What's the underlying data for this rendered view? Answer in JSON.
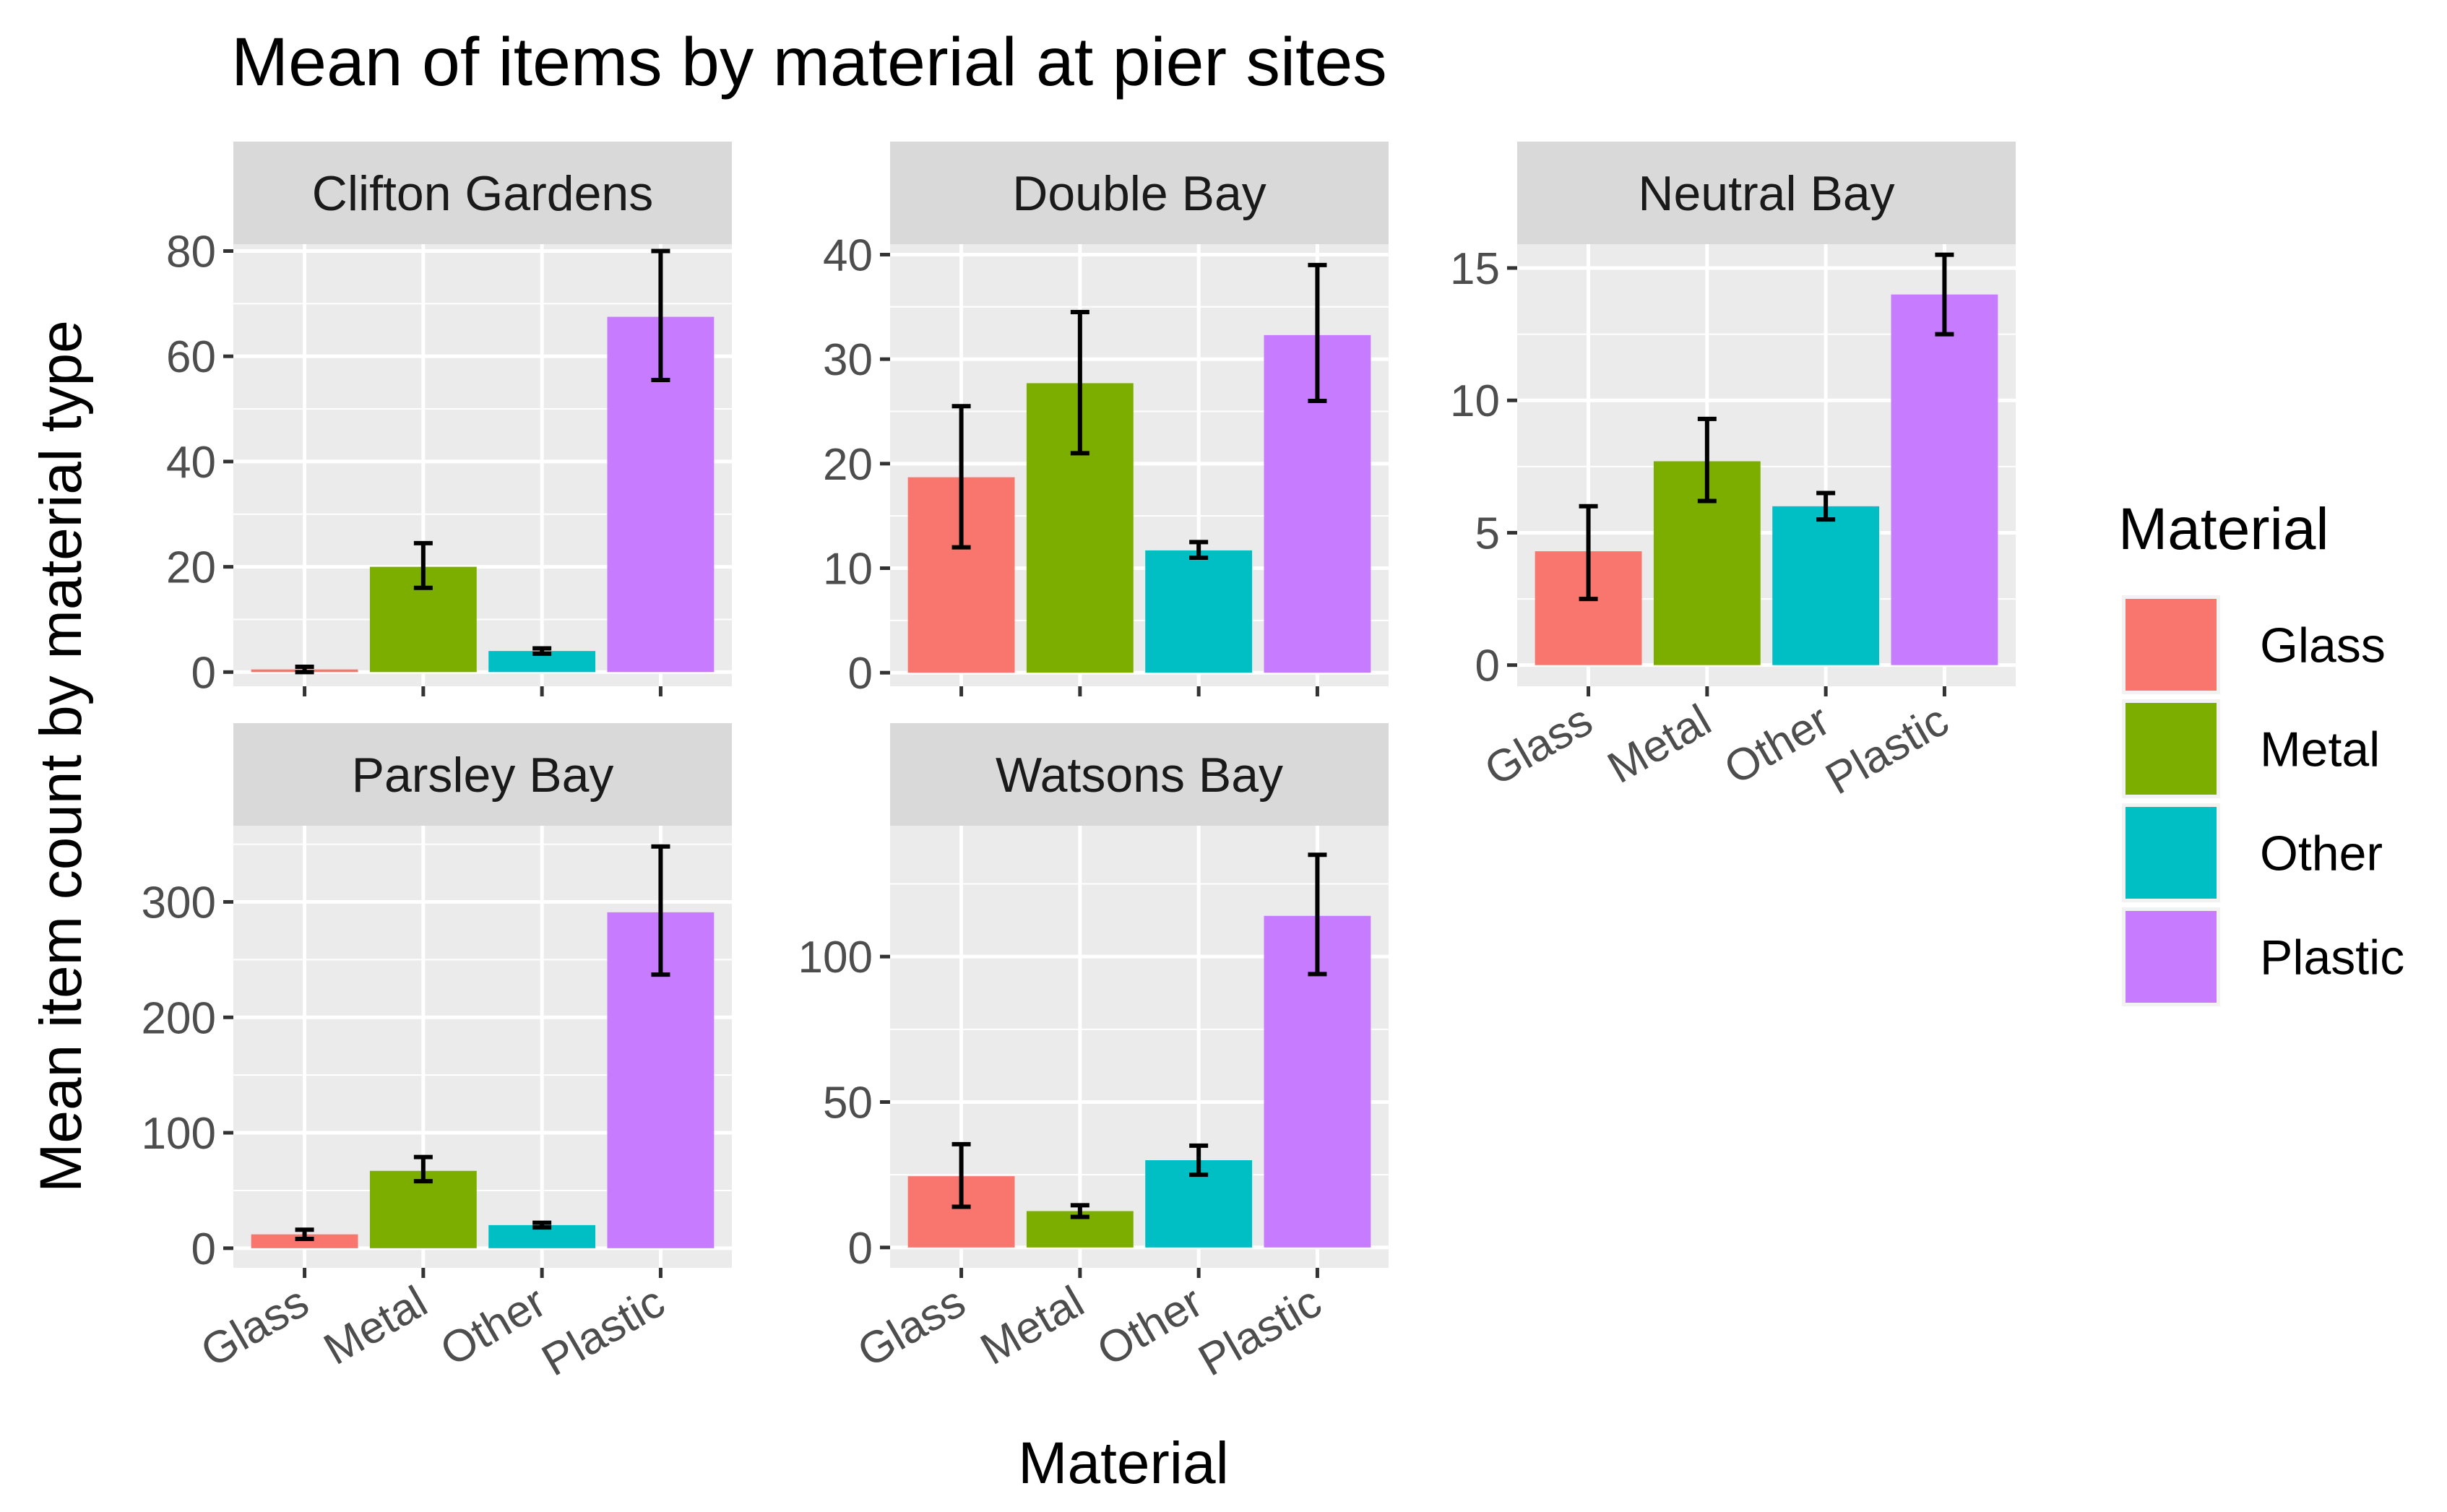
{
  "chart_data": {
    "type": "bar",
    "title": "Mean of items by material at pier sites",
    "xlabel": "Material",
    "ylabel": "Mean item count by material type",
    "categories": [
      "Glass",
      "Metal",
      "Other",
      "Plastic"
    ],
    "colors": {
      "Glass": "#F8766D",
      "Metal": "#7CAE00",
      "Other": "#00BFC4",
      "Plastic": "#C77CFF"
    },
    "legend": {
      "title": "Material",
      "position": "right",
      "items": [
        "Glass",
        "Metal",
        "Other",
        "Plastic"
      ]
    },
    "grid": true,
    "panels": [
      {
        "name": "Clifton Gardens",
        "values": [
          0.5,
          20,
          4,
          67.5
        ],
        "error_low": [
          0,
          16,
          3.5,
          55.5
        ],
        "error_high": [
          1,
          24.5,
          4.5,
          80
        ],
        "ylim": [
          -2.7,
          81.3
        ],
        "yticks": [
          0,
          20,
          40,
          60,
          80
        ],
        "show_x_axis": false
      },
      {
        "name": "Double Bay",
        "values": [
          18.7,
          27.7,
          11.7,
          32.3
        ],
        "error_low": [
          12,
          21,
          11,
          26
        ],
        "error_high": [
          25.5,
          34.5,
          12.5,
          39
        ],
        "ylim": [
          -1.3,
          41
        ],
        "yticks": [
          0,
          10,
          20,
          30,
          40
        ],
        "show_x_axis": false
      },
      {
        "name": "Neutral Bay",
        "values": [
          4.3,
          7.7,
          6,
          14
        ],
        "error_low": [
          2.5,
          6.2,
          5.5,
          12.5
        ],
        "error_high": [
          6,
          9.3,
          6.5,
          15.5
        ],
        "ylim": [
          -0.8,
          15.9
        ],
        "yticks": [
          0,
          5,
          10,
          15
        ],
        "show_x_axis": true
      },
      {
        "name": "Parsley Bay",
        "values": [
          12,
          67,
          20,
          291
        ],
        "error_low": [
          8,
          58,
          18,
          237
        ],
        "error_high": [
          16,
          79,
          22,
          348
        ],
        "ylim": [
          -17,
          366
        ],
        "yticks": [
          0,
          100,
          200,
          300
        ],
        "show_x_axis": true
      },
      {
        "name": "Watsons Bay",
        "values": [
          24.5,
          12.5,
          30,
          114
        ],
        "error_low": [
          14,
          10.5,
          25,
          94
        ],
        "error_high": [
          35.5,
          14.5,
          35,
          135
        ],
        "ylim": [
          -7,
          145
        ],
        "yticks": [
          0,
          50,
          100
        ],
        "show_x_axis": true
      }
    ]
  }
}
